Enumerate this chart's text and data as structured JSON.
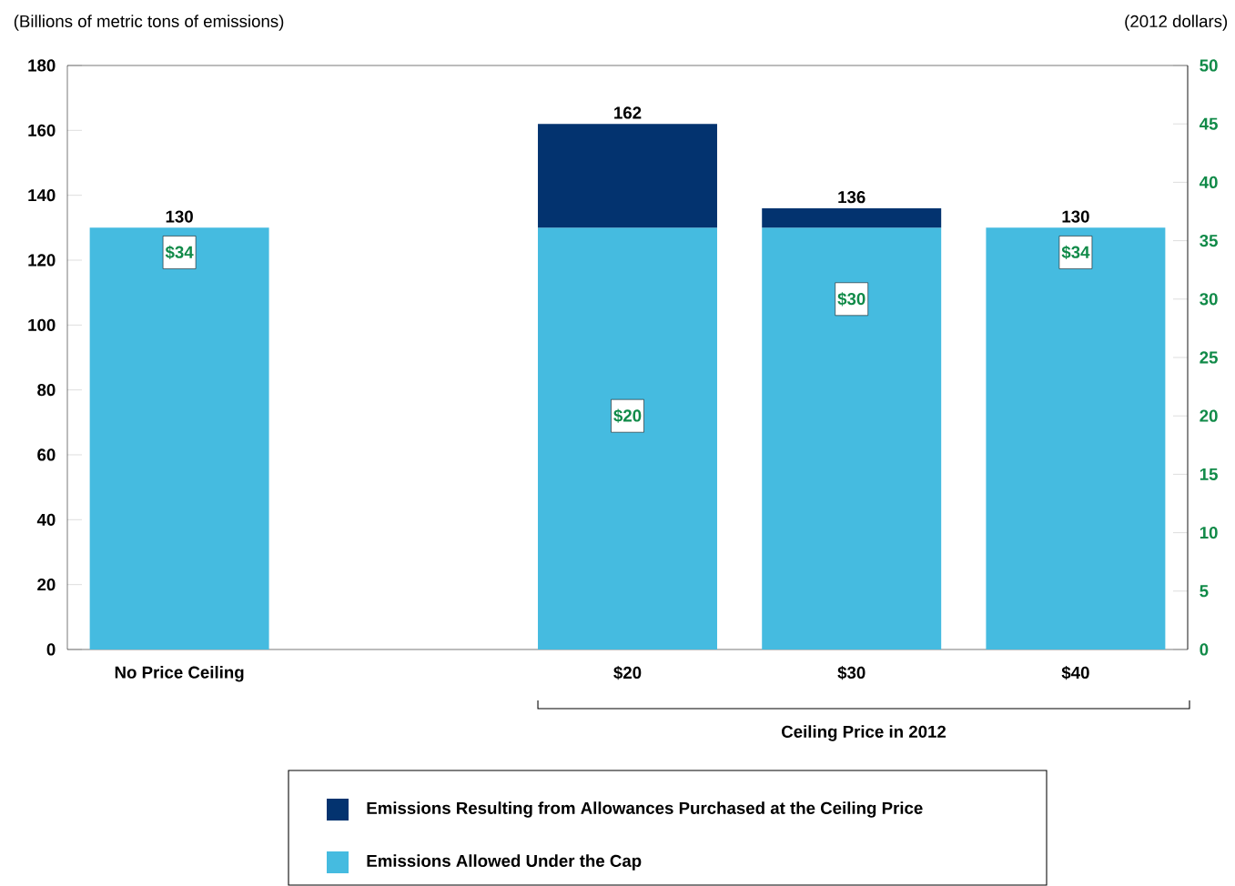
{
  "chart_data": {
    "type": "bar",
    "stacked": true,
    "ylabel": "(Billions of metric tons of emissions)",
    "y2label": "(2012 dollars)",
    "categories": [
      "No Price Ceiling",
      null,
      "$20",
      "$30",
      "$40"
    ],
    "series": [
      {
        "name": "Emissions Allowed Under the Cap",
        "color": "#45bbe0",
        "values": [
          130,
          null,
          130,
          130,
          130
        ]
      },
      {
        "name": "Emissions Resulting from Allowances Purchased at the Ceiling Price",
        "color": "#03336f",
        "values": [
          null,
          null,
          32,
          6,
          null
        ]
      },
      {
        "type": "scatter",
        "axis": "y2",
        "color": "#ffffff",
        "marker": "square",
        "values": [
          34,
          null,
          20,
          30,
          34
        ],
        "value_labels": [
          "$34",
          null,
          "$20",
          "$30",
          "$34"
        ]
      }
    ],
    "totals": [
      "130",
      null,
      "162",
      "136",
      "130"
    ],
    "ylim": [
      0,
      180
    ],
    "yticks": [
      0,
      20,
      40,
      60,
      80,
      100,
      120,
      140,
      160,
      180
    ],
    "y2lim": [
      0,
      50
    ],
    "y2ticks": [
      0,
      5,
      10,
      15,
      20,
      25,
      30,
      35,
      40,
      45,
      50
    ],
    "annotations": [
      "Ceiling Price in 2012"
    ],
    "legend": "bottom"
  }
}
